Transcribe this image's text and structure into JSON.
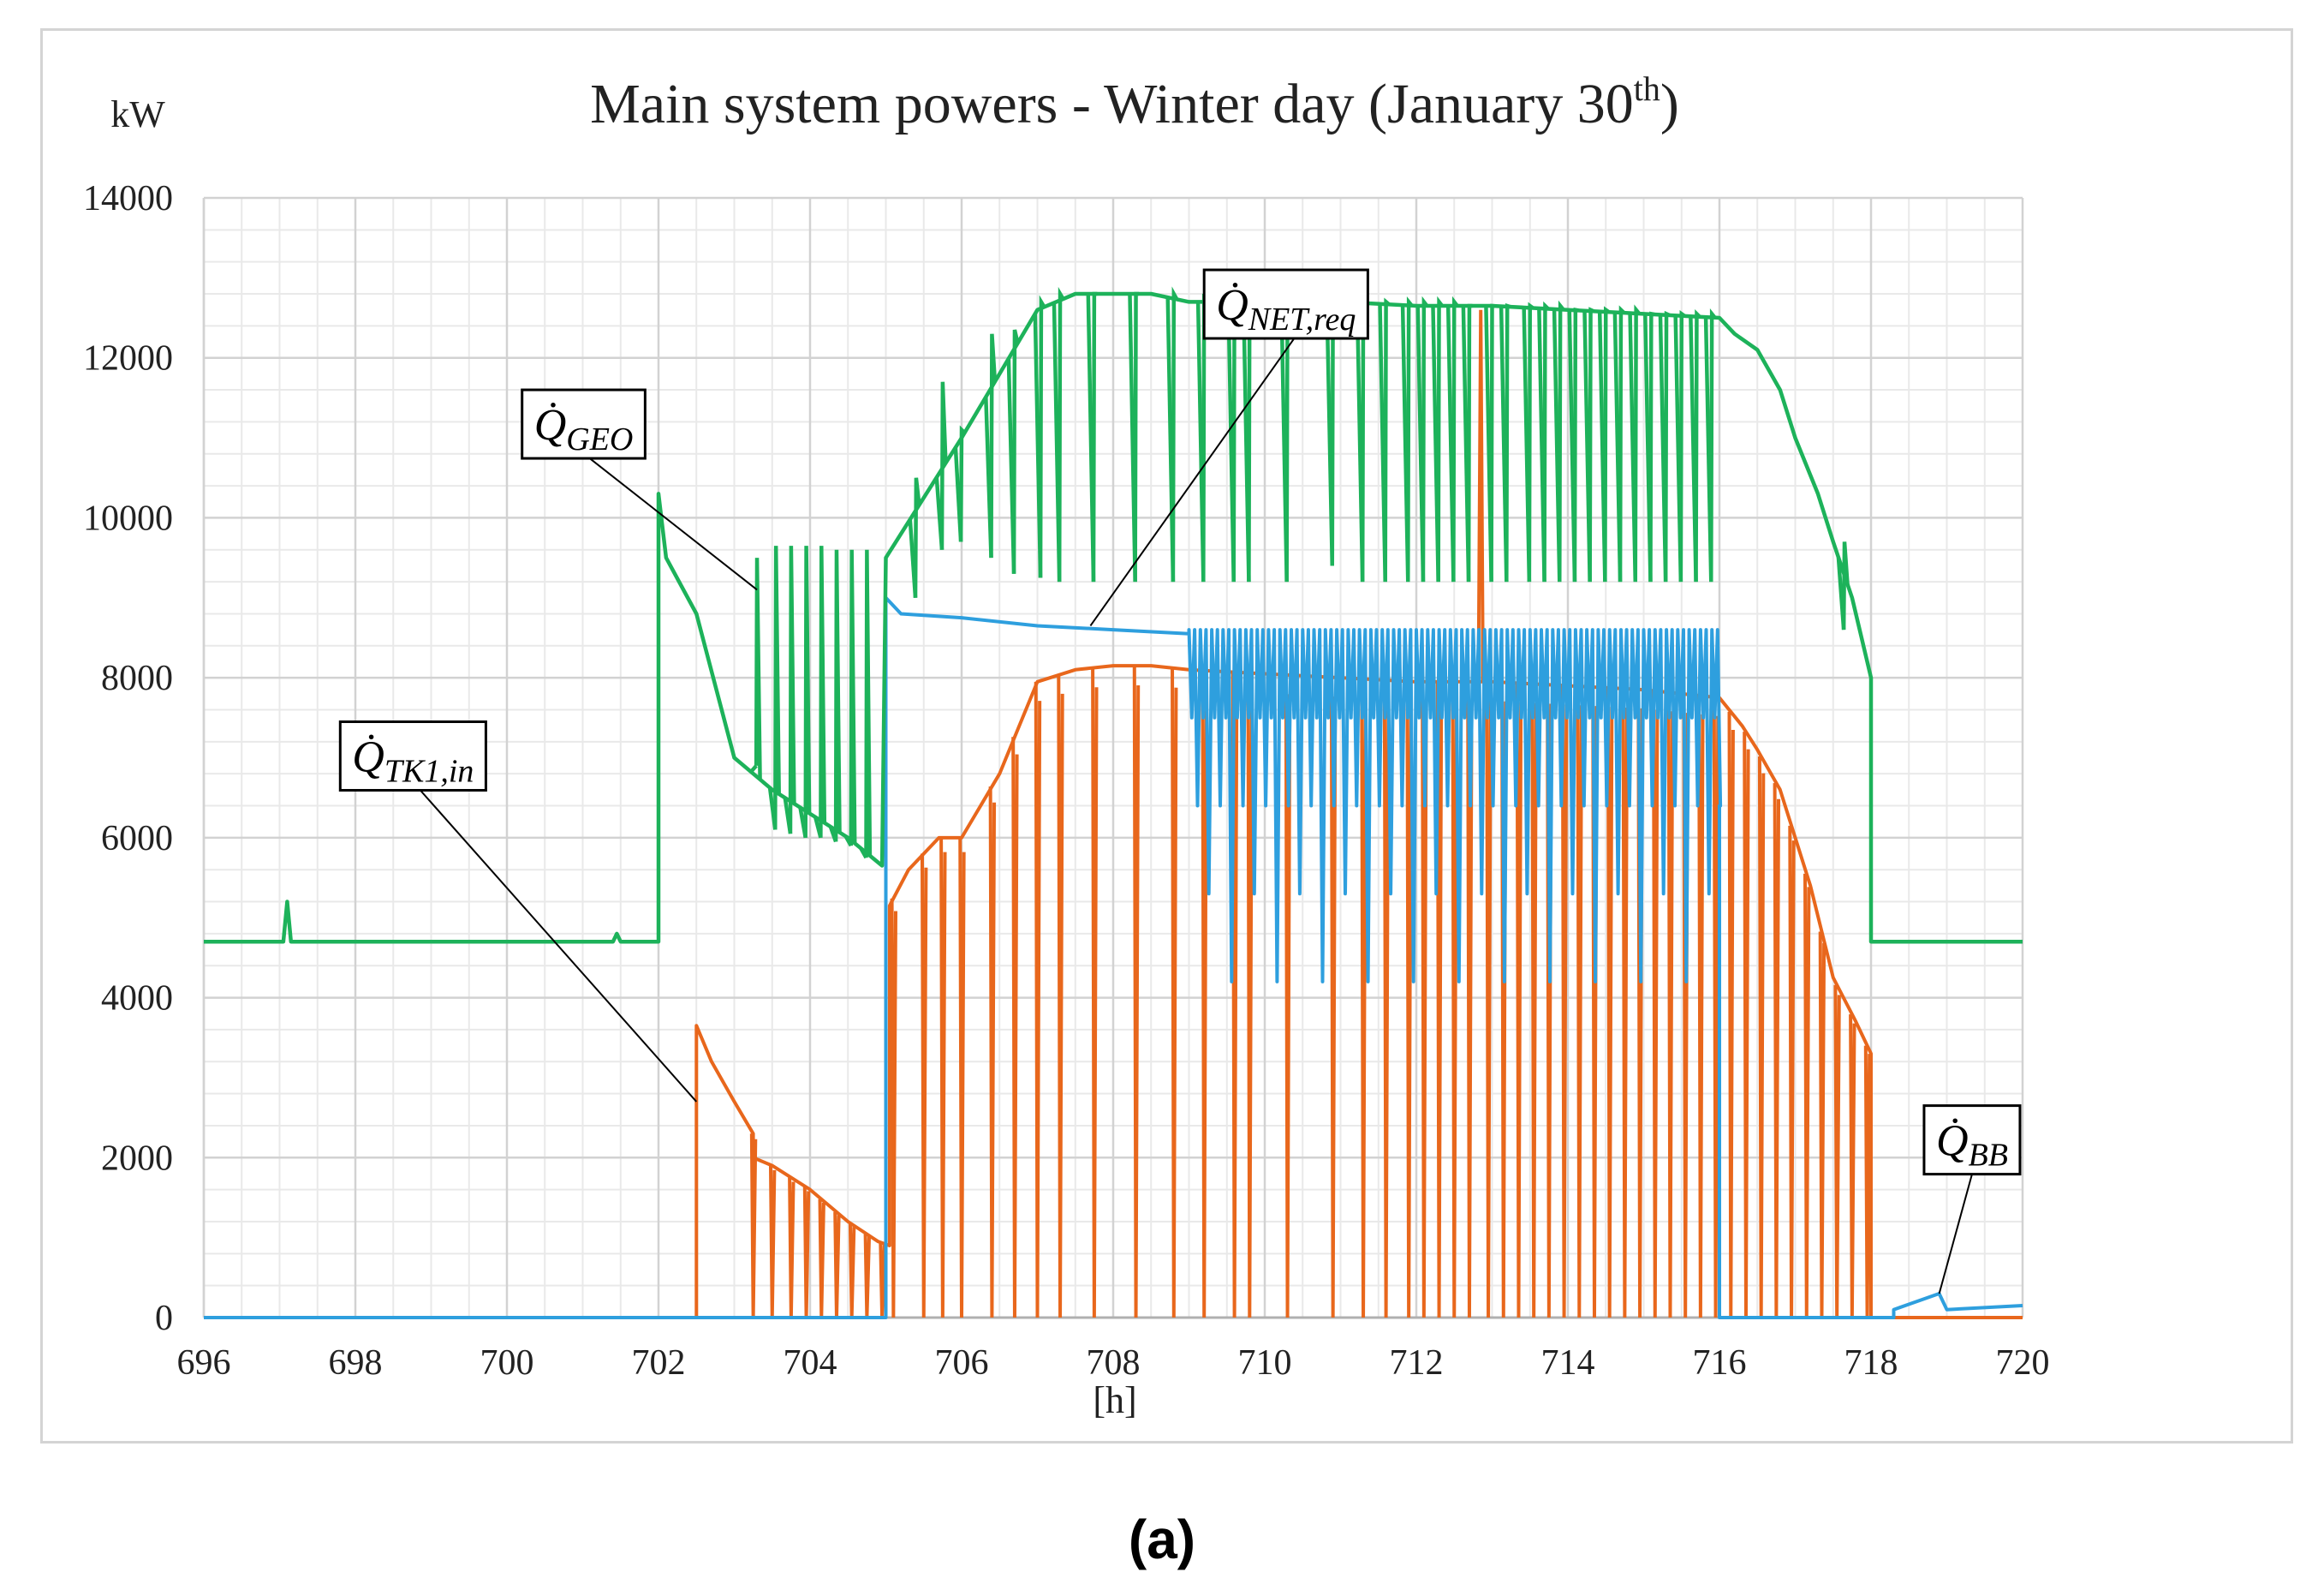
{
  "figure": {
    "caption": "(a)"
  },
  "chart_data": {
    "type": "line",
    "title": "Main system powers - Winter day (January 30th)",
    "title_parts": [
      "Main system powers - Winter day (January 30",
      "th",
      ")"
    ],
    "ylabel": "kW",
    "xlabel": "[h]",
    "xlim": [
      696,
      720
    ],
    "ylim": [
      0,
      14000
    ],
    "x_ticks": [
      696,
      698,
      700,
      702,
      704,
      706,
      708,
      710,
      712,
      714,
      716,
      718,
      720
    ],
    "y_ticks": [
      0,
      2000,
      4000,
      6000,
      8000,
      10000,
      12000,
      14000
    ],
    "x_minor_step": 0.5,
    "y_minor_step": 400,
    "grid": true,
    "colors": {
      "GEO": "#1db25a",
      "TK1": "#e8671c",
      "NET": "#2e9fde",
      "grid": "#d9d9d9",
      "axis": "#b8b8b8",
      "text": "#222222"
    },
    "series": [
      {
        "name": "Q̇GEO",
        "key": "GEO",
        "base": [
          [
            696,
            4700
          ],
          [
            697.05,
            4700
          ],
          [
            697.1,
            5200
          ],
          [
            697.15,
            4700
          ],
          [
            701.4,
            4700
          ],
          [
            701.45,
            4800
          ],
          [
            701.5,
            4700
          ],
          [
            702,
            4700
          ],
          [
            702,
            10300
          ],
          [
            702.1,
            9500
          ],
          [
            702.5,
            8800
          ],
          [
            703,
            7000
          ],
          [
            703.5,
            6600
          ],
          [
            704,
            6300
          ],
          [
            704.5,
            6000
          ],
          [
            704.95,
            5650
          ],
          [
            705,
            9500
          ],
          [
            705.2,
            9800
          ],
          [
            705.6,
            10400
          ],
          [
            706,
            11000
          ],
          [
            706.5,
            11800
          ],
          [
            707,
            12600
          ],
          [
            707.5,
            12800
          ],
          [
            708,
            12800
          ],
          [
            708.5,
            12800
          ],
          [
            709,
            12700
          ],
          [
            710,
            12700
          ],
          [
            711,
            12700
          ],
          [
            712,
            12650
          ],
          [
            713,
            12650
          ],
          [
            714,
            12600
          ],
          [
            715,
            12550
          ],
          [
            716,
            12500
          ],
          [
            716.2,
            12300
          ],
          [
            716.5,
            12100
          ],
          [
            716.8,
            11600
          ],
          [
            717,
            11000
          ],
          [
            717.3,
            10300
          ],
          [
            717.5,
            9700
          ],
          [
            717.75,
            9000
          ],
          [
            718,
            8000
          ],
          [
            718,
            4700
          ],
          [
            720,
            4700
          ]
        ],
        "spikes": [
          [
            703.3,
            6900,
            9500
          ],
          [
            703.55,
            6100,
            9650
          ],
          [
            703.75,
            6050,
            9650
          ],
          [
            703.95,
            6000,
            9650
          ],
          [
            704.15,
            6000,
            9650
          ],
          [
            704.35,
            5950,
            9600
          ],
          [
            704.55,
            5900,
            9600
          ],
          [
            704.75,
            5750,
            9600
          ],
          [
            705.4,
            9000,
            10500
          ],
          [
            705.75,
            9600,
            11700
          ],
          [
            706,
            9700,
            11100
          ],
          [
            706.4,
            9500,
            12300
          ],
          [
            706.7,
            9300,
            12350
          ],
          [
            707.05,
            9250,
            12700
          ],
          [
            707.3,
            9200,
            12800
          ],
          [
            707.75,
            9200,
            12800
          ],
          [
            708.3,
            9200,
            12800
          ],
          [
            708.8,
            9200,
            12800
          ],
          [
            709.2,
            9200,
            12800
          ],
          [
            709.6,
            9200,
            12800
          ],
          [
            709.8,
            9200,
            12800
          ],
          [
            710.3,
            9200,
            12800
          ],
          [
            710.9,
            9400,
            12700
          ],
          [
            711.3,
            9200,
            12700
          ],
          [
            711.6,
            9200,
            12700
          ],
          [
            711.9,
            9200,
            12700
          ],
          [
            712.1,
            9200,
            12700
          ],
          [
            712.3,
            9200,
            12700
          ],
          [
            712.5,
            9200,
            12700
          ],
          [
            712.7,
            9200,
            12650
          ],
          [
            713,
            9200,
            12650
          ],
          [
            713.2,
            9200,
            12650
          ],
          [
            713.5,
            9200,
            12650
          ],
          [
            713.7,
            9200,
            12650
          ],
          [
            713.9,
            9200,
            12650
          ],
          [
            714.1,
            9200,
            12600
          ],
          [
            714.3,
            9200,
            12600
          ],
          [
            714.5,
            9200,
            12600
          ],
          [
            714.7,
            9200,
            12600
          ],
          [
            714.9,
            9200,
            12600
          ],
          [
            715.1,
            9200,
            12550
          ],
          [
            715.3,
            9200,
            12550
          ],
          [
            715.5,
            9200,
            12550
          ],
          [
            715.7,
            9200,
            12550
          ],
          [
            715.9,
            9200,
            12550
          ],
          [
            717.65,
            8600,
            9700
          ]
        ]
      },
      {
        "name": "Q̇TK1,in",
        "key": "TK1",
        "base": [
          [
            696,
            0
          ],
          [
            702.5,
            0
          ],
          [
            702.5,
            3650
          ],
          [
            702.7,
            3200
          ],
          [
            703,
            2700
          ],
          [
            703.25,
            2300
          ],
          [
            703.25,
            2000
          ],
          [
            703.5,
            1900
          ],
          [
            704,
            1600
          ],
          [
            704.5,
            1200
          ],
          [
            704.9,
            950
          ],
          [
            705.05,
            900
          ],
          [
            705.05,
            5150
          ],
          [
            705.3,
            5600
          ],
          [
            705.7,
            6000
          ],
          [
            706,
            6000
          ],
          [
            706.5,
            6800
          ],
          [
            707,
            7950
          ],
          [
            707.5,
            8100
          ],
          [
            708,
            8150
          ],
          [
            708.5,
            8150
          ],
          [
            709,
            8100
          ],
          [
            710,
            8050
          ],
          [
            711,
            8000
          ],
          [
            712,
            7950
          ],
          [
            713,
            7950
          ],
          [
            714,
            7900
          ],
          [
            715,
            7850
          ],
          [
            716,
            7750
          ],
          [
            716.3,
            7400
          ],
          [
            716.5,
            7100
          ],
          [
            716.8,
            6600
          ],
          [
            717,
            6000
          ],
          [
            717.2,
            5400
          ],
          [
            717.5,
            4250
          ],
          [
            717.8,
            3700
          ],
          [
            718,
            3300
          ],
          [
            718,
            0
          ],
          [
            720,
            0
          ]
        ],
        "dips": [
          703.25,
          703.5,
          703.75,
          703.95,
          704.15,
          704.35,
          704.55,
          704.75,
          704.95,
          705.1,
          705.5,
          705.75,
          706,
          706.4,
          706.7,
          707,
          707.3,
          707.75,
          708.3,
          708.8,
          709.2,
          709.6,
          709.8,
          710.3,
          710.9,
          711.3,
          711.6,
          711.9,
          712.1,
          712.3,
          712.5,
          712.7,
          712.95,
          713.15,
          713.35,
          713.55,
          713.75,
          713.95,
          714.15,
          714.35,
          714.55,
          714.75,
          714.95,
          715.15,
          715.35,
          715.55,
          715.75,
          715.95,
          716.15,
          716.35,
          716.55,
          716.75,
          716.95,
          717.15,
          717.35,
          717.55,
          717.75,
          717.95
        ],
        "peaks": [
          [
            712.85,
            12600
          ]
        ]
      },
      {
        "name": "Q̇NET,req",
        "key": "NET",
        "base": [
          [
            696,
            0
          ],
          [
            705,
            0
          ],
          [
            705,
            9000
          ],
          [
            705.2,
            8800
          ],
          [
            706,
            8750
          ],
          [
            707,
            8650
          ],
          [
            708,
            8600
          ],
          [
            709,
            8550
          ],
          [
            709,
            8550
          ]
        ],
        "osc": {
          "start": 709,
          "end": 716,
          "step": 0.075,
          "high": 8600,
          "low_pattern": [
            7500,
            6400,
            7500,
            5300,
            7500,
            6400,
            7500,
            4200
          ]
        },
        "tail": [
          [
            716,
            6400
          ],
          [
            716,
            0
          ],
          [
            718.3,
            0
          ],
          [
            718.3,
            100
          ],
          [
            718.9,
            300
          ],
          [
            719,
            100
          ],
          [
            720,
            150
          ]
        ]
      },
      {
        "name": "Q̇BB",
        "key": "BB",
        "note": "shares blue line segment 718.3-720"
      }
    ],
    "annotations": [
      {
        "key": "NET",
        "text_base": "Q̇",
        "text_sub": "NET,req",
        "box_data": [
          709.2,
          13100
        ],
        "point": [
          707.7,
          8650
        ],
        "anchor_data": [
          710,
          13300
        ]
      },
      {
        "key": "GEO",
        "text_base": "Q̇",
        "text_sub": "GEO",
        "box_data": [
          700.2,
          11600
        ],
        "point": [
          703.3,
          9100
        ],
        "anchor_data": [
          700.5,
          11300
        ]
      },
      {
        "key": "TK1",
        "text_base": "Q̇",
        "text_sub": "TK1,in",
        "box_data": [
          697.8,
          7450
        ],
        "point": [
          702.5,
          2700
        ],
        "anchor_data": [
          698.7,
          7300
        ]
      },
      {
        "key": "BB",
        "text_base": "Q̇",
        "text_sub": "BB",
        "box_data": [
          718.7,
          2650
        ],
        "point": [
          718.9,
          300
        ],
        "anchor_data": [
          719.4,
          2800
        ]
      }
    ]
  }
}
